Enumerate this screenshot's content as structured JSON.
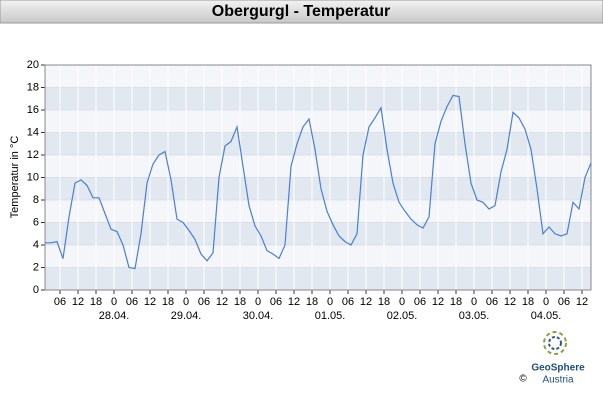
{
  "chart_data": {
    "type": "line",
    "title": "Obergurgl - Temperatur",
    "y_label": "Temperatur in °C",
    "color": "#4a7fd4",
    "grid": true,
    "x": [
      "27.04. 01:00",
      "27.04. 03:00",
      "27.04. 05:00",
      "27.04. 07:00",
      "27.04. 09:00",
      "27.04. 11:00",
      "27.04. 13:00",
      "27.04. 15:00",
      "27.04. 17:00",
      "27.04. 19:00",
      "27.04. 21:00",
      "27.04. 23:00",
      "28.04. 01:00",
      "28.04. 03:00",
      "28.04. 05:00",
      "28.04. 07:00",
      "28.04. 09:00",
      "28.04. 11:00",
      "28.04. 13:00",
      "28.04. 15:00",
      "28.04. 17:00",
      "28.04. 19:00",
      "28.04. 21:00",
      "28.04. 23:00",
      "29.04. 01:00",
      "29.04. 03:00",
      "29.04. 05:00",
      "29.04. 07:00",
      "29.04. 09:00",
      "29.04. 11:00",
      "29.04. 13:00",
      "29.04. 15:00",
      "29.04. 17:00",
      "29.04. 19:00",
      "29.04. 21:00",
      "29.04. 23:00",
      "30.04. 01:00",
      "30.04. 03:00",
      "30.04. 05:00",
      "30.04. 07:00",
      "30.04. 09:00",
      "30.04. 11:00",
      "30.04. 13:00",
      "30.04. 15:00",
      "30.04. 17:00",
      "30.04. 19:00",
      "30.04. 21:00",
      "30.04. 23:00",
      "01.05. 01:00",
      "01.05. 03:00",
      "01.05. 05:00",
      "01.05. 07:00",
      "01.05. 09:00",
      "01.05. 11:00",
      "01.05. 13:00",
      "01.05. 15:00",
      "01.05. 17:00",
      "01.05. 19:00",
      "01.05. 21:00",
      "01.05. 23:00",
      "02.05. 01:00",
      "02.05. 03:00",
      "02.05. 05:00",
      "02.05. 07:00",
      "02.05. 09:00",
      "02.05. 11:00",
      "02.05. 13:00",
      "02.05. 15:00",
      "02.05. 17:00",
      "02.05. 19:00",
      "02.05. 21:00",
      "02.05. 23:00",
      "03.05. 01:00",
      "03.05. 03:00",
      "03.05. 05:00",
      "03.05. 07:00",
      "03.05. 09:00",
      "03.05. 11:00",
      "03.05. 13:00",
      "03.05. 15:00",
      "03.05. 17:00",
      "03.05. 19:00",
      "03.05. 21:00",
      "03.05. 23:00",
      "04.05. 01:00",
      "04.05. 03:00",
      "04.05. 05:00",
      "04.05. 07:00",
      "04.05. 09:00",
      "04.05. 11:00",
      "04.05. 13:00",
      "04.05. 15:00"
    ],
    "values": [
      4.2,
      4.2,
      4.3,
      2.8,
      6.5,
      9.5,
      9.8,
      9.3,
      8.2,
      8.2,
      6.8,
      5.4,
      5.2,
      4.0,
      2.0,
      1.9,
      5.0,
      9.5,
      11.2,
      12.0,
      12.3,
      9.8,
      6.3,
      6.0,
      5.3,
      4.5,
      3.2,
      2.6,
      3.3,
      10.0,
      12.8,
      13.2,
      14.5,
      11.0,
      7.5,
      5.7,
      4.8,
      3.5,
      3.2,
      2.8,
      4.0,
      11.0,
      13.0,
      14.5,
      15.2,
      12.5,
      9.0,
      7.0,
      5.8,
      4.8,
      4.3,
      4.0,
      5.0,
      12.0,
      14.5,
      15.3,
      16.2,
      12.5,
      9.5,
      7.8,
      7.0,
      6.3,
      5.8,
      5.5,
      6.5,
      13.0,
      15.0,
      16.3,
      17.3,
      17.2,
      13.0,
      9.5,
      8.0,
      7.8,
      7.2,
      7.5,
      10.5,
      12.5,
      15.8,
      15.3,
      14.3,
      12.5,
      9.0,
      5.0,
      5.6,
      5.0,
      4.8,
      5.0,
      7.8,
      7.2,
      10.0,
      11.3
    ],
    "xlim": [
      "27.04. 01:00",
      "04.05. 15:00"
    ],
    "xticks": [
      {
        "value": "27.04. 06:00",
        "label": "06"
      },
      {
        "value": "27.04. 12:00",
        "label": "12"
      },
      {
        "value": "27.04. 18:00",
        "label": "18"
      },
      {
        "value": "28.04. 00:00",
        "label": "0"
      },
      {
        "value": "28.04. 06:00",
        "label": "06"
      },
      {
        "value": "28.04. 12:00",
        "label": "12"
      },
      {
        "value": "28.04. 18:00",
        "label": "18"
      },
      {
        "value": "29.04. 00:00",
        "label": "0"
      },
      {
        "value": "29.04. 06:00",
        "label": "06"
      },
      {
        "value": "29.04. 12:00",
        "label": "12"
      },
      {
        "value": "29.04. 18:00",
        "label": "18"
      },
      {
        "value": "30.04. 00:00",
        "label": "0"
      },
      {
        "value": "30.04. 06:00",
        "label": "06"
      },
      {
        "value": "30.04. 12:00",
        "label": "12"
      },
      {
        "value": "30.04. 18:00",
        "label": "18"
      },
      {
        "value": "01.05. 00:00",
        "label": "0"
      },
      {
        "value": "01.05. 06:00",
        "label": "06"
      },
      {
        "value": "01.05. 12:00",
        "label": "12"
      },
      {
        "value": "01.05. 18:00",
        "label": "18"
      },
      {
        "value": "02.05. 00:00",
        "label": "0"
      },
      {
        "value": "02.05. 06:00",
        "label": "06"
      },
      {
        "value": "02.05. 12:00",
        "label": "12"
      },
      {
        "value": "02.05. 18:00",
        "label": "18"
      },
      {
        "value": "03.05. 00:00",
        "label": "0"
      },
      {
        "value": "03.05. 06:00",
        "label": "06"
      },
      {
        "value": "03.05. 12:00",
        "label": "12"
      },
      {
        "value": "03.05. 18:00",
        "label": "18"
      },
      {
        "value": "04.05. 00:00",
        "label": "0"
      },
      {
        "value": "04.05. 06:00",
        "label": "06"
      },
      {
        "value": "04.05. 12:00",
        "label": "12"
      }
    ],
    "date_ticks": [
      {
        "value": "28.04. 00:00",
        "label": "28.04."
      },
      {
        "value": "29.04. 00:00",
        "label": "29.04."
      },
      {
        "value": "30.04. 00:00",
        "label": "30.04."
      },
      {
        "value": "01.05. 00:00",
        "label": "01.05."
      },
      {
        "value": "02.05. 00:00",
        "label": "02.05."
      },
      {
        "value": "03.05. 00:00",
        "label": "03.05."
      },
      {
        "value": "04.05. 00:00",
        "label": "04.05."
      }
    ],
    "ylim": [
      0,
      20
    ],
    "yticks": [
      0,
      2,
      4,
      6,
      8,
      10,
      12,
      14,
      16,
      18,
      20
    ]
  },
  "logo": {
    "name": "GeoSphere",
    "sub": "Austria",
    "copyright": "©"
  }
}
